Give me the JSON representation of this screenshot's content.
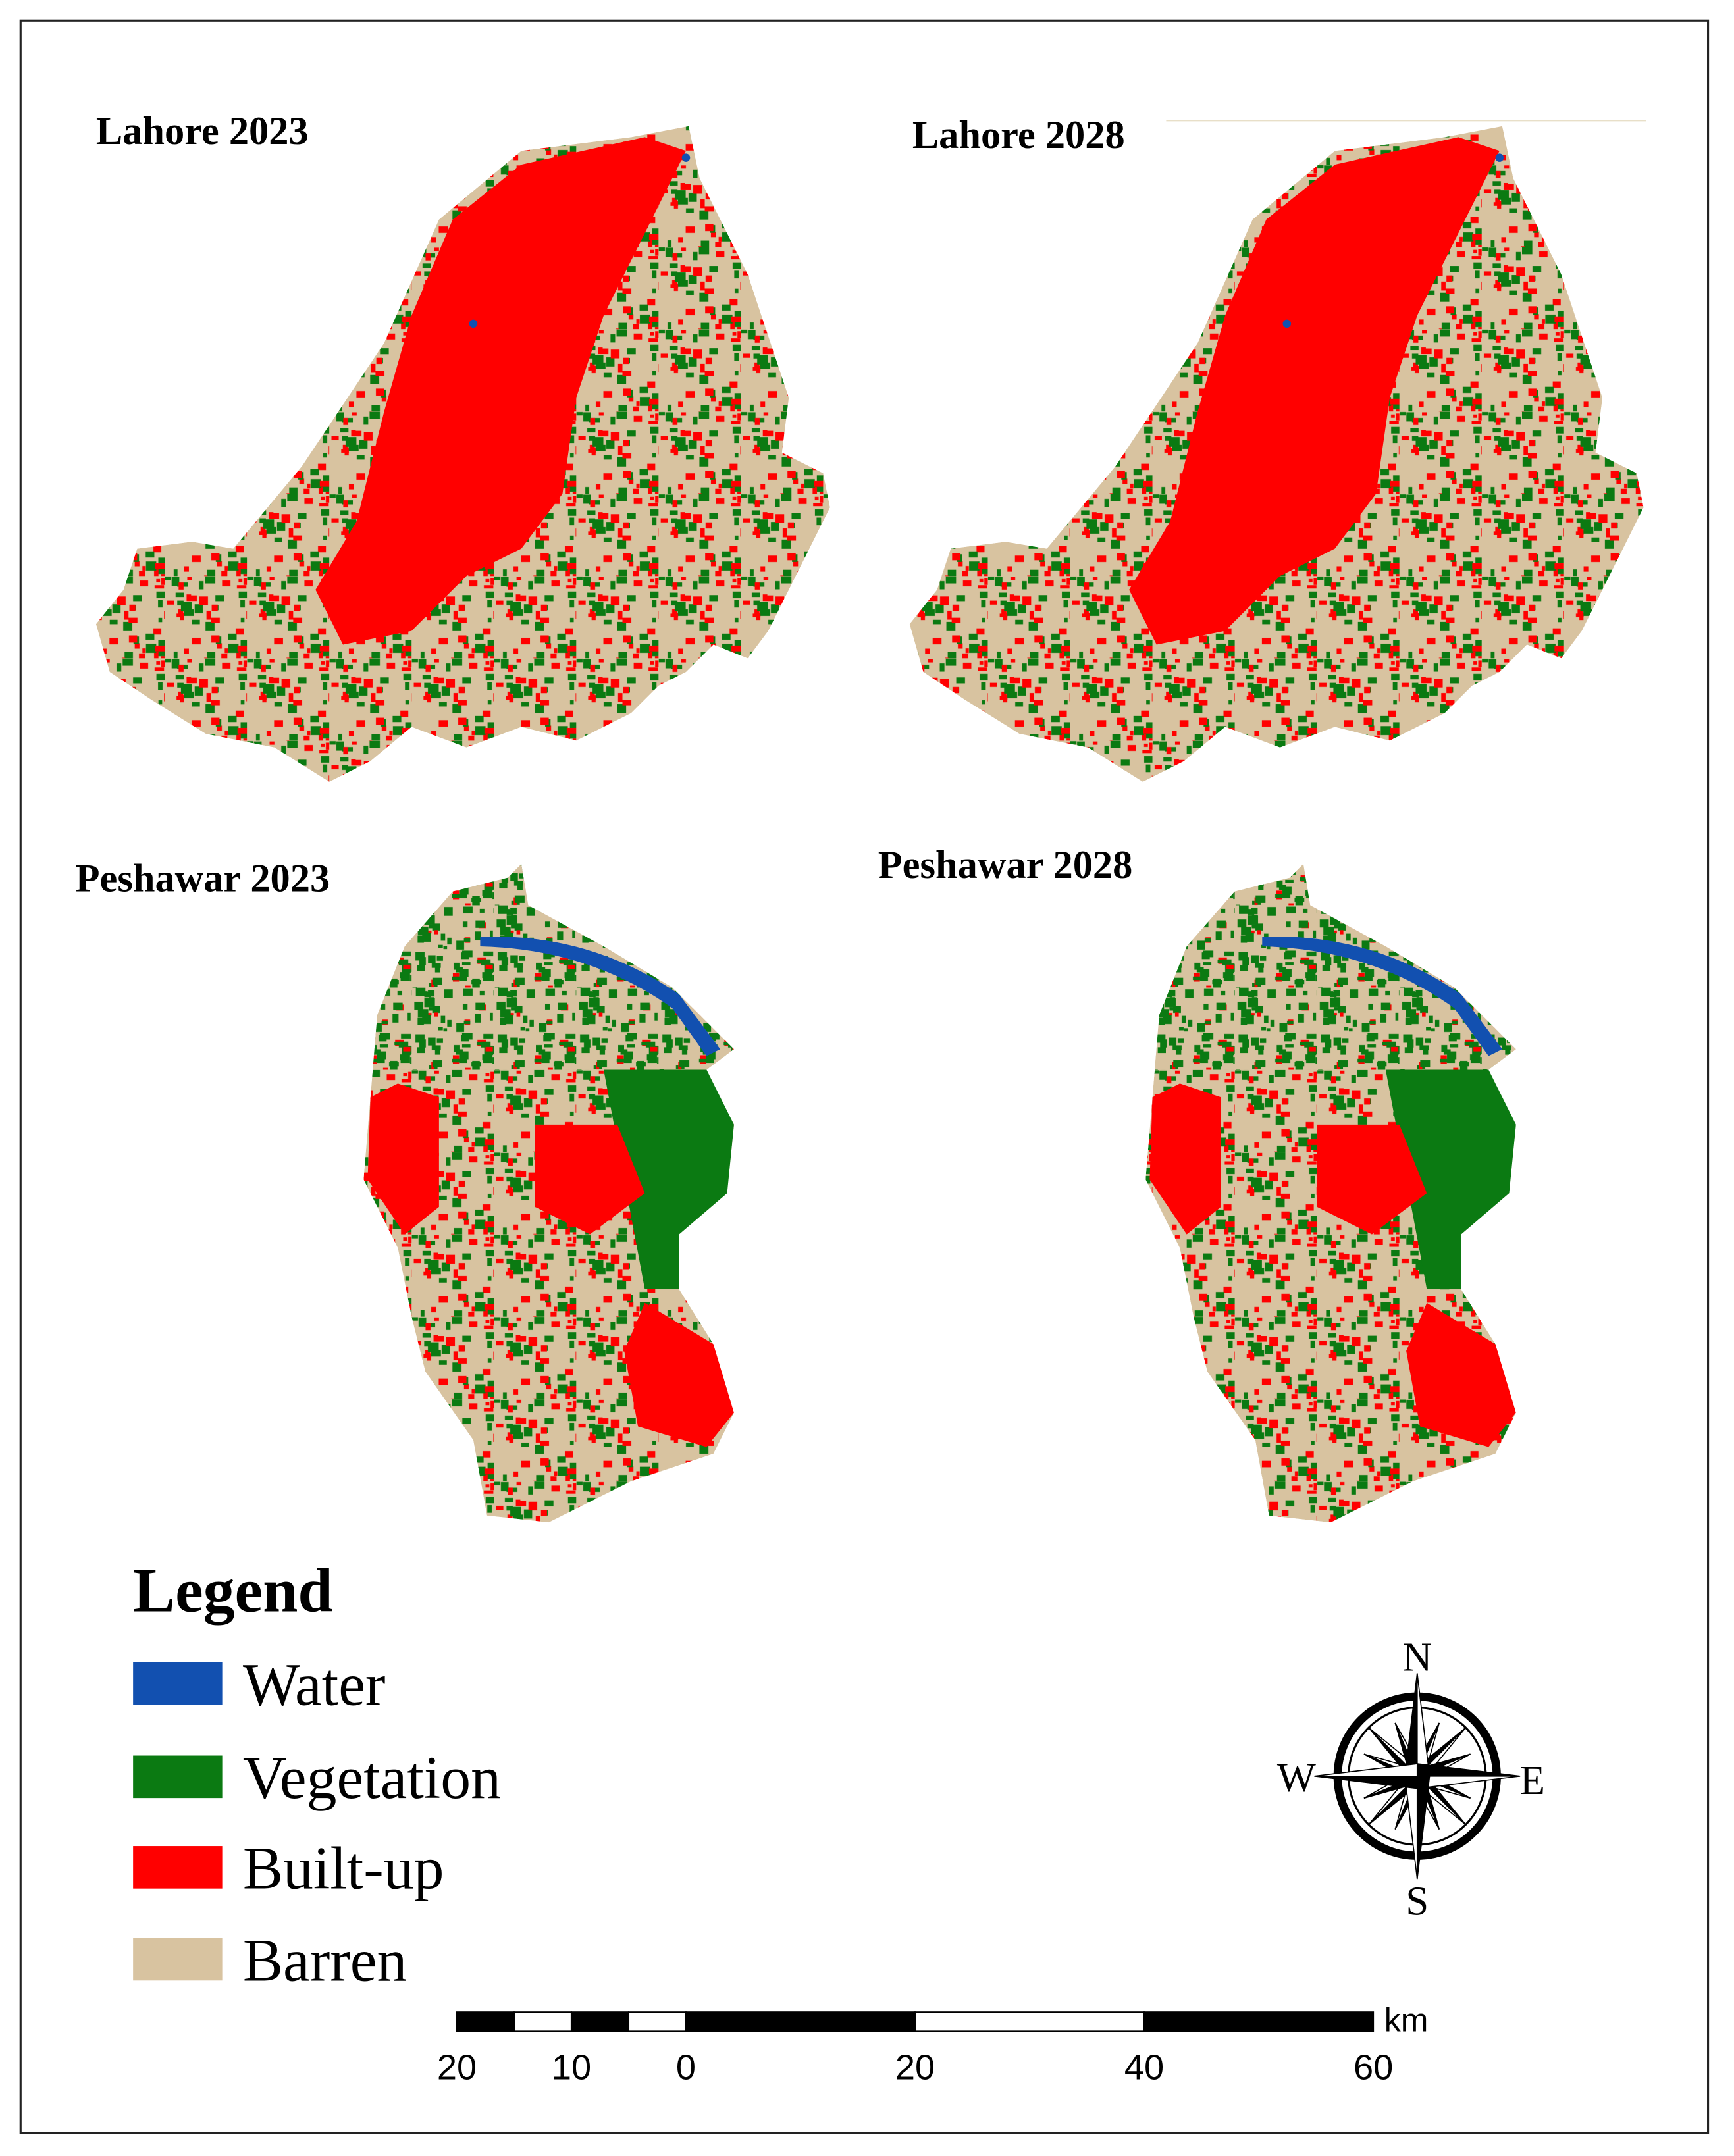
{
  "maps": [
    {
      "title": "Lahore 2023"
    },
    {
      "title": "Lahore 2028"
    },
    {
      "title": "Peshawar 2023"
    },
    {
      "title": "Peshawar 2028"
    }
  ],
  "legend": {
    "title": "Legend",
    "items": [
      {
        "label": "Water",
        "color": "#1250b0"
      },
      {
        "label": "Vegetation",
        "color": "#0b7a12"
      },
      {
        "label": "Built-up",
        "color": "#ff0000"
      },
      {
        "label": "Barren",
        "color": "#d8c3a0"
      }
    ]
  },
  "compass": {
    "n": "N",
    "e": "E",
    "s": "S",
    "w": "W"
  },
  "scale_bar": {
    "unit": "km",
    "ticks": [
      {
        "value": -20,
        "label": "20"
      },
      {
        "value": -10,
        "label": "10"
      },
      0,
      20,
      40,
      60
    ]
  }
}
